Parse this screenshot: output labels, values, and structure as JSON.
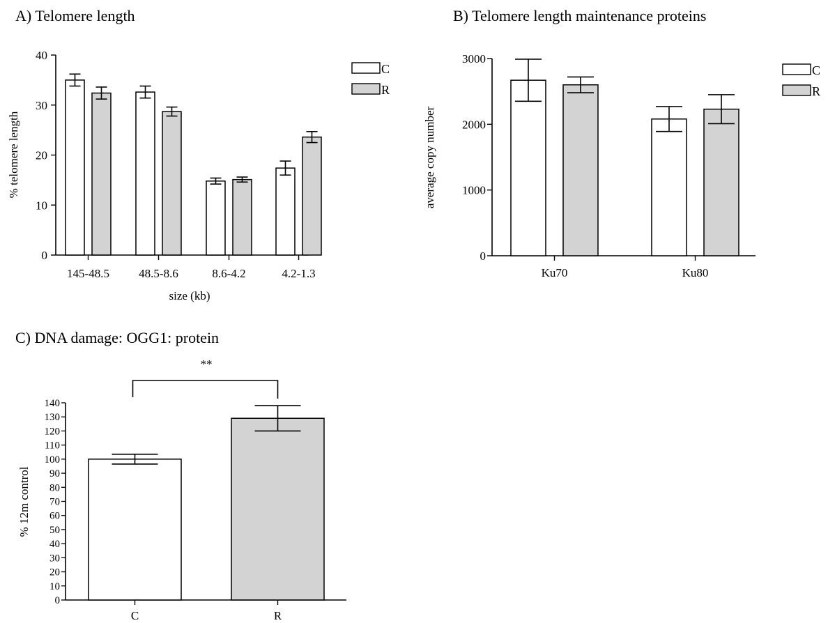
{
  "chart_data": [
    {
      "panel_id": "A",
      "type": "bar",
      "title": "A) Telomere length",
      "xlabel": "size (kb)",
      "ylabel": "% telomere length",
      "ylim": [
        0,
        40
      ],
      "yticks": [
        "0",
        "10",
        "20",
        "30",
        "40"
      ],
      "categories": [
        "145-48.5",
        "48.5-8.6",
        "8.6-4.2",
        "4.2-1.3"
      ],
      "legend_position": "top-right",
      "series": [
        {
          "name": "C",
          "color": "#ffffff",
          "values": [
            35.0,
            32.6,
            14.8,
            17.4
          ],
          "errors": [
            1.2,
            1.2,
            0.6,
            1.4
          ]
        },
        {
          "name": "R",
          "color": "#d3d3d3",
          "values": [
            32.4,
            28.7,
            15.1,
            23.6
          ],
          "errors": [
            1.2,
            0.9,
            0.5,
            1.1
          ]
        }
      ]
    },
    {
      "panel_id": "B",
      "type": "bar",
      "title": "B) Telomere length maintenance proteins",
      "xlabel": "",
      "ylabel": "average copy number",
      "ylim": [
        0,
        3000
      ],
      "yticks": [
        "0",
        "1000",
        "2000",
        "3000"
      ],
      "categories": [
        "Ku70",
        "Ku80"
      ],
      "legend_position": "top-right",
      "series": [
        {
          "name": "C",
          "color": "#ffffff",
          "values": [
            2670,
            2080
          ],
          "errors": [
            320,
            190
          ]
        },
        {
          "name": "R",
          "color": "#d3d3d3",
          "values": [
            2600,
            2230
          ],
          "errors": [
            120,
            220
          ]
        }
      ]
    },
    {
      "panel_id": "C",
      "type": "bar",
      "title": "C) DNA damage: OGG1: protein",
      "xlabel": "",
      "ylabel": "% 12m control",
      "ylim": [
        0,
        140
      ],
      "yticks": [
        "0",
        "10",
        "20",
        "30",
        "40",
        "50",
        "60",
        "70",
        "80",
        "90",
        "100",
        "110",
        "120",
        "130",
        "140"
      ],
      "categories": [
        "C",
        "R"
      ],
      "values": [
        100,
        129
      ],
      "errors": [
        3.5,
        9
      ],
      "colors": [
        "#ffffff",
        "#d3d3d3"
      ],
      "significance": "**"
    }
  ]
}
